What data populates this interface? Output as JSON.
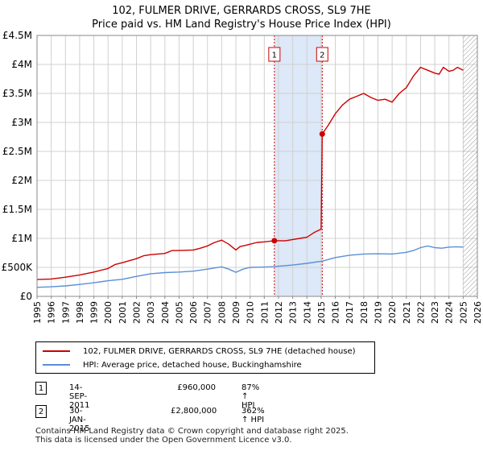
{
  "title_line1": "102, FULMER DRIVE, GERRARDS CROSS, SL9 7HE",
  "title_line2": "Price paid vs. HM Land Registry's House Price Index (HPI)",
  "colors": {
    "property": "#cc0000",
    "hpi": "#5a8fd6",
    "shade": "#dde8f8",
    "grid": "#d0d0d0"
  },
  "legend": {
    "property_label": "102, FULMER DRIVE, GERRARDS CROSS, SL9 7HE (detached house)",
    "hpi_label": "HPI: Average price, detached house, Buckinghamshire"
  },
  "transactions": [
    {
      "num": "1",
      "date": "14-SEP-2011",
      "price": "£960,000",
      "hpi": "87% ↑ HPI"
    },
    {
      "num": "2",
      "date": "30-JAN-2015",
      "price": "£2,800,000",
      "hpi": "362% ↑ HPI"
    }
  ],
  "footer": {
    "line1": "Contains HM Land Registry data © Crown copyright and database right 2025.",
    "line2": "This data is licensed under the Open Government Licence v3.0."
  },
  "chart_data": {
    "type": "line",
    "title": "Price paid vs. HM Land Registry's House Price Index (HPI)",
    "xlabel": "",
    "ylabel": "",
    "xlim": [
      1995,
      2026
    ],
    "ylim": [
      0,
      4500000
    ],
    "x_ticks": [
      "1995",
      "1996",
      "1997",
      "1998",
      "1999",
      "2000",
      "2001",
      "2002",
      "2003",
      "2004",
      "2005",
      "2006",
      "2007",
      "2008",
      "2009",
      "2010",
      "2011",
      "2012",
      "2013",
      "2014",
      "2015",
      "2016",
      "2017",
      "2018",
      "2019",
      "2020",
      "2021",
      "2022",
      "2023",
      "2024",
      "2025",
      "2026"
    ],
    "y_ticks": [
      {
        "value": 0,
        "label": "£0"
      },
      {
        "value": 500000,
        "label": "£500K"
      },
      {
        "value": 1000000,
        "label": "£1M"
      },
      {
        "value": 1500000,
        "label": "£1.5M"
      },
      {
        "value": 2000000,
        "label": "£2M"
      },
      {
        "value": 2500000,
        "label": "£2.5M"
      },
      {
        "value": 3000000,
        "label": "£3M"
      },
      {
        "value": 3500000,
        "label": "£3.5M"
      },
      {
        "value": 4000000,
        "label": "£4M"
      },
      {
        "value": 4500000,
        "label": "£4.5M"
      }
    ],
    "grid": true,
    "shaded_range": [
      2011.71,
      2015.08
    ],
    "future_hatch_from": 2025.0,
    "markers": [
      {
        "label": "1",
        "x": 2011.71,
        "y": 960000
      },
      {
        "label": "2",
        "x": 2015.08,
        "y": 2800000
      }
    ],
    "series": [
      {
        "name": "102, FULMER DRIVE, GERRARDS CROSS, SL9 7HE (detached house)",
        "color": "#cc0000",
        "x": [
          1995.0,
          1996.0,
          1997.0,
          1998.0,
          1999.0,
          2000.0,
          2000.5,
          2001.0,
          2002.0,
          2002.5,
          2003.0,
          2004.0,
          2004.5,
          2005.0,
          2006.0,
          2006.5,
          2007.0,
          2007.5,
          2008.0,
          2008.5,
          2009.0,
          2009.3,
          2009.7,
          2010.0,
          2010.5,
          2011.0,
          2011.71,
          2012.0,
          2012.5,
          2013.0,
          2013.5,
          2014.0,
          2014.5,
          2015.0,
          2015.08,
          2015.5,
          2016.0,
          2016.5,
          2017.0,
          2017.5,
          2018.0,
          2018.5,
          2019.0,
          2019.5,
          2020.0,
          2020.5,
          2021.0,
          2021.5,
          2022.0,
          2022.5,
          2023.0,
          2023.3,
          2023.6,
          2024.0,
          2024.3,
          2024.6,
          2025.0
        ],
        "y": [
          290000,
          300000,
          330000,
          370000,
          420000,
          480000,
          550000,
          580000,
          650000,
          700000,
          720000,
          740000,
          790000,
          790000,
          800000,
          830000,
          870000,
          930000,
          970000,
          900000,
          800000,
          860000,
          880000,
          900000,
          930000,
          940000,
          960000,
          960000,
          960000,
          980000,
          1000000,
          1020000,
          1100000,
          1160000,
          2800000,
          2950000,
          3150000,
          3300000,
          3400000,
          3450000,
          3500000,
          3430000,
          3380000,
          3400000,
          3350000,
          3500000,
          3600000,
          3800000,
          3950000,
          3900000,
          3850000,
          3830000,
          3950000,
          3880000,
          3900000,
          3950000,
          3900000
        ]
      },
      {
        "name": "HPI: Average price, detached house, Buckinghamshire",
        "color": "#5a8fd6",
        "x": [
          1995.0,
          1996.0,
          1997.0,
          1998.0,
          1999.0,
          2000.0,
          2001.0,
          2002.0,
          2003.0,
          2004.0,
          2005.0,
          2006.0,
          2007.0,
          2008.0,
          2008.5,
          2009.0,
          2009.5,
          2010.0,
          2011.0,
          2011.71,
          2012.0,
          2013.0,
          2014.0,
          2015.0,
          2015.08,
          2016.0,
          2017.0,
          2018.0,
          2019.0,
          2020.0,
          2021.0,
          2021.5,
          2022.0,
          2022.5,
          2023.0,
          2023.5,
          2024.0,
          2024.5,
          2025.0
        ],
        "y": [
          155000,
          165000,
          180000,
          205000,
          235000,
          270000,
          295000,
          345000,
          390000,
          410000,
          420000,
          435000,
          470000,
          510000,
          470000,
          415000,
          470000,
          500000,
          505000,
          512000,
          520000,
          540000,
          570000,
          605000,
          607000,
          670000,
          710000,
          730000,
          735000,
          730000,
          760000,
          790000,
          840000,
          870000,
          840000,
          830000,
          850000,
          855000,
          850000
        ]
      }
    ]
  }
}
